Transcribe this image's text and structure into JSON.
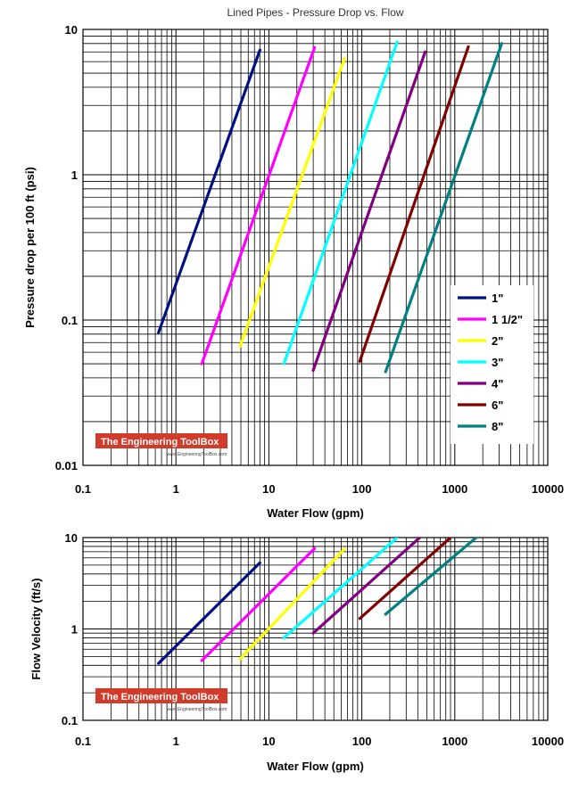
{
  "brand": {
    "name": "The Engineering ToolBox",
    "url": "www.EngineeringToolBox.com",
    "color": "#d23a2a"
  },
  "chart_data": [
    {
      "type": "line",
      "title": "Lined Pipes - Pressure Drop vs. Flow",
      "xlabel": "Water Flow (gpm)",
      "ylabel": "Pressure drop per 100 ft (psi)",
      "x_scale": "log",
      "y_scale": "log",
      "xlim": [
        0.1,
        10000
      ],
      "ylim": [
        0.01,
        10
      ],
      "x_ticks": [
        "0.1",
        "1",
        "10",
        "100",
        "1000",
        "10000"
      ],
      "y_ticks": [
        "0.01",
        "0.1",
        "1",
        "10"
      ],
      "grid": true,
      "legend": "right",
      "series": [
        {
          "name": "1\"",
          "color": "#001080",
          "x": [
            0.65,
            8.0
          ],
          "y": [
            0.082,
            7.2
          ]
        },
        {
          "name": "1 1/2\"",
          "color": "#ff00ff",
          "x": [
            1.9,
            31
          ],
          "y": [
            0.05,
            7.5
          ]
        },
        {
          "name": "2\"",
          "color": "#ffff00",
          "x": [
            4.9,
            65
          ],
          "y": [
            0.066,
            6.3
          ]
        },
        {
          "name": "3\"",
          "color": "#00ffff",
          "x": [
            14.5,
            240
          ],
          "y": [
            0.05,
            8.2
          ]
        },
        {
          "name": "4\"",
          "color": "#800080",
          "x": [
            30,
            480
          ],
          "y": [
            0.045,
            7.0
          ]
        },
        {
          "name": "6\"",
          "color": "#800000",
          "x": [
            95,
            1400
          ],
          "y": [
            0.052,
            7.6
          ]
        },
        {
          "name": "8\"",
          "color": "#008080",
          "x": [
            180,
            3200
          ],
          "y": [
            0.044,
            8.0
          ]
        }
      ]
    },
    {
      "type": "line",
      "title": "",
      "xlabel": "Water Flow (gpm)",
      "ylabel": "Flow Velocity (ft/s)",
      "x_scale": "log",
      "y_scale": "log",
      "xlim": [
        0.1,
        10000
      ],
      "ylim": [
        0.1,
        10
      ],
      "x_ticks": [
        "0.1",
        "1",
        "10",
        "100",
        "1000",
        "10000"
      ],
      "y_ticks": [
        "0.1",
        "1",
        "10"
      ],
      "grid": true,
      "series": [
        {
          "color": "#001080",
          "x": [
            0.65,
            8.0
          ],
          "y": [
            0.42,
            5.3
          ]
        },
        {
          "color": "#ff00ff",
          "x": [
            1.9,
            31
          ],
          "y": [
            0.45,
            7.6
          ]
        },
        {
          "color": "#ffff00",
          "x": [
            4.9,
            65
          ],
          "y": [
            0.47,
            7.5
          ]
        },
        {
          "color": "#00ffff",
          "x": [
            14.5,
            240
          ],
          "y": [
            0.8,
            10
          ]
        },
        {
          "color": "#800080",
          "x": [
            30,
            420
          ],
          "y": [
            0.9,
            10
          ]
        },
        {
          "color": "#800000",
          "x": [
            95,
            900
          ],
          "y": [
            1.3,
            10
          ]
        },
        {
          "color": "#008080",
          "x": [
            180,
            1700
          ],
          "y": [
            1.45,
            10
          ]
        }
      ]
    }
  ]
}
